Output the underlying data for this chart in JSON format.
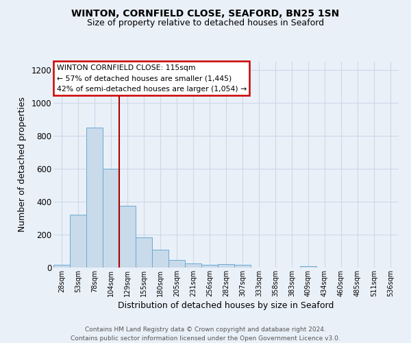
{
  "title": "WINTON, CORNFIELD CLOSE, SEAFORD, BN25 1SN",
  "subtitle": "Size of property relative to detached houses in Seaford",
  "xlabel": "Distribution of detached houses by size in Seaford",
  "ylabel": "Number of detached properties",
  "footer_line1": "Contains HM Land Registry data © Crown copyright and database right 2024.",
  "footer_line2": "Contains public sector information licensed under the Open Government Licence v3.0.",
  "categories": [
    "28sqm",
    "53sqm",
    "78sqm",
    "104sqm",
    "129sqm",
    "155sqm",
    "180sqm",
    "205sqm",
    "231sqm",
    "256sqm",
    "282sqm",
    "307sqm",
    "333sqm",
    "358sqm",
    "383sqm",
    "409sqm",
    "434sqm",
    "460sqm",
    "485sqm",
    "511sqm",
    "536sqm"
  ],
  "values": [
    15,
    320,
    850,
    600,
    375,
    183,
    108,
    47,
    25,
    15,
    22,
    15,
    0,
    0,
    0,
    10,
    0,
    0,
    0,
    0,
    0
  ],
  "bar_color": "#c9daea",
  "bar_edge_color": "#6aaad4",
  "grid_color": "#cdd8e8",
  "background_color": "#eaf0f8",
  "vline_x": 3.5,
  "vline_color": "#aa0000",
  "annotation_line1": "WINTON CORNFIELD CLOSE: 115sqm",
  "annotation_line2": "← 57% of detached houses are smaller (1,445)",
  "annotation_line3": "42% of semi-detached houses are larger (1,054) →",
  "annotation_box_color": "#ffffff",
  "annotation_box_edge": "#cc0000",
  "ylim": [
    0,
    1250
  ],
  "yticks": [
    0,
    200,
    400,
    600,
    800,
    1000,
    1200
  ]
}
